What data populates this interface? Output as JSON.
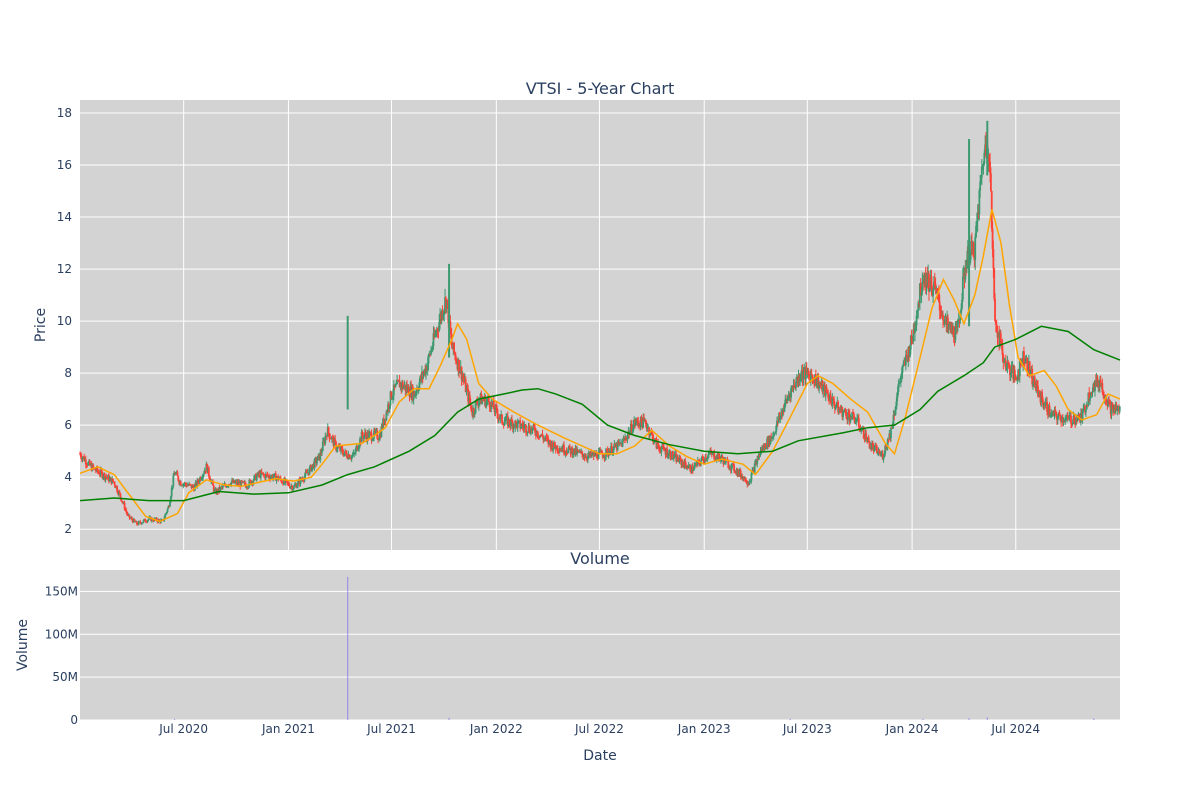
{
  "chart_data": [
    {
      "type": "candlestick",
      "title": "VTSI - 5-Year Chart",
      "xlabel": "",
      "ylabel": "Price",
      "ylim": [
        1.2,
        18.5
      ],
      "yticks": [
        2,
        4,
        6,
        8,
        10,
        12,
        14,
        16,
        18
      ],
      "x_range": [
        "2020-01-01",
        "2024-12-31"
      ],
      "grid": true,
      "background": "#d3d3d3",
      "colors": {
        "up": "#3d9970",
        "down": "#ff4136",
        "ma_short": "#ffa500",
        "ma_long": "#008000"
      },
      "price_path": [
        [
          "2020-01-01",
          4.9
        ],
        [
          "2020-01-20",
          4.4
        ],
        [
          "2020-02-10",
          4.1
        ],
        [
          "2020-03-01",
          3.8
        ],
        [
          "2020-03-15",
          3.1
        ],
        [
          "2020-03-25",
          2.5
        ],
        [
          "2020-04-10",
          2.2
        ],
        [
          "2020-05-01",
          2.4
        ],
        [
          "2020-05-25",
          2.3
        ],
        [
          "2020-06-05",
          2.9
        ],
        [
          "2020-06-15",
          4.2
        ],
        [
          "2020-06-25",
          3.8
        ],
        [
          "2020-07-20",
          3.6
        ],
        [
          "2020-08-10",
          4.4
        ],
        [
          "2020-08-25",
          3.4
        ],
        [
          "2020-09-20",
          3.8
        ],
        [
          "2020-10-20",
          3.7
        ],
        [
          "2020-11-10",
          4.1
        ],
        [
          "2020-12-10",
          4.0
        ],
        [
          "2021-01-10",
          3.6
        ],
        [
          "2021-02-01",
          4.1
        ],
        [
          "2021-02-25",
          4.8
        ],
        [
          "2021-03-10",
          5.8
        ],
        [
          "2021-03-25",
          5.2
        ],
        [
          "2021-04-10",
          4.9
        ],
        [
          "2021-04-25",
          4.8
        ],
        [
          "2021-05-10",
          5.6
        ],
        [
          "2021-06-10",
          5.6
        ],
        [
          "2021-07-01",
          7.2
        ],
        [
          "2021-07-15",
          7.6
        ],
        [
          "2021-08-10",
          7.2
        ],
        [
          "2021-09-01",
          8.3
        ],
        [
          "2021-09-20",
          9.8
        ],
        [
          "2021-10-05",
          10.9
        ],
        [
          "2021-10-15",
          9.0
        ],
        [
          "2021-11-01",
          8.0
        ],
        [
          "2021-11-20",
          6.5
        ],
        [
          "2021-12-01",
          7.0
        ],
        [
          "2021-12-20",
          6.9
        ],
        [
          "2022-01-10",
          6.2
        ],
        [
          "2022-02-10",
          6.0
        ],
        [
          "2022-03-10",
          5.8
        ],
        [
          "2022-04-10",
          5.2
        ],
        [
          "2022-05-15",
          5.0
        ],
        [
          "2022-06-10",
          4.8
        ],
        [
          "2022-07-10",
          4.9
        ],
        [
          "2022-08-10",
          5.3
        ],
        [
          "2022-09-01",
          6.1
        ],
        [
          "2022-09-20",
          6.1
        ],
        [
          "2022-10-10",
          5.2
        ],
        [
          "2022-11-01",
          4.9
        ],
        [
          "2022-11-20",
          4.6
        ],
        [
          "2022-12-10",
          4.3
        ],
        [
          "2022-12-25",
          4.6
        ],
        [
          "2023-01-10",
          4.9
        ],
        [
          "2023-02-01",
          4.7
        ],
        [
          "2023-03-01",
          4.2
        ],
        [
          "2023-03-20",
          3.8
        ],
        [
          "2023-04-10",
          5.0
        ],
        [
          "2023-05-01",
          5.6
        ],
        [
          "2023-06-01",
          7.3
        ],
        [
          "2023-06-20",
          8.0
        ],
        [
          "2023-07-10",
          7.9
        ],
        [
          "2023-08-01",
          7.3
        ],
        [
          "2023-08-25",
          6.6
        ],
        [
          "2023-09-25",
          6.2
        ],
        [
          "2023-10-20",
          5.2
        ],
        [
          "2023-11-10",
          4.8
        ],
        [
          "2023-11-25",
          5.8
        ],
        [
          "2023-12-10",
          7.7
        ],
        [
          "2024-01-01",
          9.3
        ],
        [
          "2024-01-20",
          11.8
        ],
        [
          "2024-02-10",
          11.2
        ],
        [
          "2024-03-01",
          9.8
        ],
        [
          "2024-03-20",
          9.5
        ],
        [
          "2024-04-05",
          12.4
        ],
        [
          "2024-04-20",
          12.8
        ],
        [
          "2024-05-05",
          16.4
        ],
        [
          "2024-05-15",
          16.9
        ],
        [
          "2024-05-25",
          10.2
        ],
        [
          "2024-06-10",
          8.5
        ],
        [
          "2024-07-01",
          7.8
        ],
        [
          "2024-07-15",
          8.7
        ],
        [
          "2024-08-10",
          7.2
        ],
        [
          "2024-09-01",
          6.4
        ],
        [
          "2024-10-01",
          6.2
        ],
        [
          "2024-10-25",
          6.3
        ],
        [
          "2024-11-10",
          7.4
        ],
        [
          "2024-11-25",
          7.7
        ],
        [
          "2024-12-15",
          6.6
        ],
        [
          "2024-12-31",
          6.6
        ]
      ],
      "spikes": [
        [
          "2021-04-15",
          6.6,
          10.2
        ],
        [
          "2021-10-10",
          8.6,
          12.2
        ],
        [
          "2024-04-10",
          9.8,
          17.0
        ],
        [
          "2024-05-12",
          15.6,
          17.7
        ]
      ],
      "series": [
        {
          "name": "",
          "color": "#ffa500",
          "points": [
            [
              "2020-01-01",
              4.15
            ],
            [
              "2020-02-01",
              4.4
            ],
            [
              "2020-03-01",
              4.1
            ],
            [
              "2020-04-01",
              3.2
            ],
            [
              "2020-04-25",
              2.5
            ],
            [
              "2020-05-20",
              2.3
            ],
            [
              "2020-06-20",
              2.6
            ],
            [
              "2020-07-10",
              3.4
            ],
            [
              "2020-08-10",
              3.9
            ],
            [
              "2020-09-10",
              3.7
            ],
            [
              "2020-10-10",
              3.65
            ],
            [
              "2020-11-10",
              3.8
            ],
            [
              "2020-12-10",
              3.95
            ],
            [
              "2021-01-10",
              3.85
            ],
            [
              "2021-02-10",
              4.0
            ],
            [
              "2021-03-01",
              4.5
            ],
            [
              "2021-03-25",
              5.2
            ],
            [
              "2021-04-15",
              5.25
            ],
            [
              "2021-05-10",
              5.3
            ],
            [
              "2021-06-01",
              5.6
            ],
            [
              "2021-06-20",
              5.9
            ],
            [
              "2021-07-15",
              6.9
            ],
            [
              "2021-08-10",
              7.4
            ],
            [
              "2021-09-05",
              7.4
            ],
            [
              "2021-09-25",
              8.3
            ],
            [
              "2021-10-15",
              9.3
            ],
            [
              "2021-10-25",
              9.9
            ],
            [
              "2021-11-10",
              9.3
            ],
            [
              "2021-12-01",
              7.6
            ],
            [
              "2021-12-25",
              7.0
            ],
            [
              "2022-02-01",
              6.5
            ],
            [
              "2022-03-15",
              6.0
            ],
            [
              "2022-05-01",
              5.5
            ],
            [
              "2022-06-01",
              5.2
            ],
            [
              "2022-07-01",
              4.9
            ],
            [
              "2022-08-01",
              4.9
            ],
            [
              "2022-09-01",
              5.2
            ],
            [
              "2022-10-01",
              5.8
            ],
            [
              "2022-11-01",
              5.2
            ],
            [
              "2022-12-01",
              4.8
            ],
            [
              "2023-01-01",
              4.5
            ],
            [
              "2023-02-01",
              4.7
            ],
            [
              "2023-03-10",
              4.5
            ],
            [
              "2023-04-01",
              4.1
            ],
            [
              "2023-05-01",
              5.0
            ],
            [
              "2023-06-01",
              6.3
            ],
            [
              "2023-07-01",
              7.6
            ],
            [
              "2023-07-20",
              7.9
            ],
            [
              "2023-08-15",
              7.6
            ],
            [
              "2023-09-15",
              7.0
            ],
            [
              "2023-10-15",
              6.5
            ],
            [
              "2023-11-15",
              5.3
            ],
            [
              "2023-12-01",
              4.9
            ],
            [
              "2023-12-20",
              6.3
            ],
            [
              "2024-01-15",
              8.6
            ],
            [
              "2024-02-05",
              10.5
            ],
            [
              "2024-02-25",
              11.6
            ],
            [
              "2024-03-15",
              10.8
            ],
            [
              "2024-04-01",
              9.9
            ],
            [
              "2024-04-20",
              11.0
            ],
            [
              "2024-05-05",
              12.5
            ],
            [
              "2024-05-20",
              14.3
            ],
            [
              "2024-06-05",
              13.0
            ],
            [
              "2024-06-20",
              10.6
            ],
            [
              "2024-07-05",
              8.6
            ],
            [
              "2024-07-25",
              7.9
            ],
            [
              "2024-08-20",
              8.1
            ],
            [
              "2024-09-10",
              7.5
            ],
            [
              "2024-10-01",
              6.6
            ],
            [
              "2024-10-25",
              6.2
            ],
            [
              "2024-11-20",
              6.4
            ],
            [
              "2024-12-10",
              7.2
            ],
            [
              "2024-12-31",
              7.0
            ]
          ]
        },
        {
          "name": "",
          "color": "#008000",
          "points": [
            [
              "2020-01-01",
              3.1
            ],
            [
              "2020-03-01",
              3.2
            ],
            [
              "2020-05-01",
              3.1
            ],
            [
              "2020-07-01",
              3.1
            ],
            [
              "2020-09-01",
              3.45
            ],
            [
              "2020-11-01",
              3.35
            ],
            [
              "2021-01-01",
              3.4
            ],
            [
              "2021-03-01",
              3.7
            ],
            [
              "2021-04-15",
              4.1
            ],
            [
              "2021-06-01",
              4.4
            ],
            [
              "2021-08-01",
              5.0
            ],
            [
              "2021-09-15",
              5.6
            ],
            [
              "2021-10-25",
              6.5
            ],
            [
              "2021-12-01",
              7.0
            ],
            [
              "2022-01-15",
              7.2
            ],
            [
              "2022-02-15",
              7.35
            ],
            [
              "2022-03-15",
              7.4
            ],
            [
              "2022-04-15",
              7.2
            ],
            [
              "2022-06-01",
              6.8
            ],
            [
              "2022-07-15",
              6.0
            ],
            [
              "2022-09-01",
              5.6
            ],
            [
              "2022-11-01",
              5.25
            ],
            [
              "2023-01-01",
              5.0
            ],
            [
              "2023-03-01",
              4.9
            ],
            [
              "2023-05-01",
              5.0
            ],
            [
              "2023-06-15",
              5.4
            ],
            [
              "2023-09-01",
              5.7
            ],
            [
              "2023-10-15",
              5.9
            ],
            [
              "2023-12-01",
              6.0
            ],
            [
              "2024-01-15",
              6.6
            ],
            [
              "2024-02-15",
              7.3
            ],
            [
              "2024-04-01",
              7.9
            ],
            [
              "2024-05-05",
              8.4
            ],
            [
              "2024-05-25",
              9.0
            ],
            [
              "2024-07-01",
              9.3
            ],
            [
              "2024-08-15",
              9.8
            ],
            [
              "2024-10-01",
              9.6
            ],
            [
              "2024-11-15",
              8.9
            ],
            [
              "2024-12-31",
              8.5
            ]
          ]
        }
      ]
    },
    {
      "type": "bar",
      "title": "Volume",
      "xlabel": "Date",
      "ylabel": "Volume",
      "ylim": [
        0,
        175000000
      ],
      "yticks": [
        0,
        50000000,
        100000000,
        150000000
      ],
      "ytick_labels": [
        "0",
        "50M",
        "100M",
        "150M"
      ],
      "x_range": [
        "2020-01-01",
        "2024-12-31"
      ],
      "xticks": [
        "2020-07-01",
        "2021-01-01",
        "2021-07-01",
        "2022-01-01",
        "2022-07-01",
        "2023-01-01",
        "2023-07-01",
        "2024-01-01",
        "2024-07-01"
      ],
      "xtick_labels": [
        "Jul 2020",
        "Jan 2021",
        "Jul 2021",
        "Jan 2022",
        "Jul 2022",
        "Jan 2023",
        "Jul 2023",
        "Jan 2024",
        "Jul 2024"
      ],
      "background": "#d3d3d3",
      "bar_color": "#7b68ee",
      "values": [
        [
          "2021-04-15",
          167000000
        ],
        [
          "2021-10-10",
          2500000
        ],
        [
          "2024-04-10",
          2000000
        ],
        [
          "2024-05-12",
          3000000
        ],
        [
          "2020-06-15",
          1200000
        ],
        [
          "2023-06-01",
          1500000
        ],
        [
          "2024-01-20",
          1400000
        ],
        [
          "2024-11-15",
          1800000
        ]
      ]
    }
  ]
}
